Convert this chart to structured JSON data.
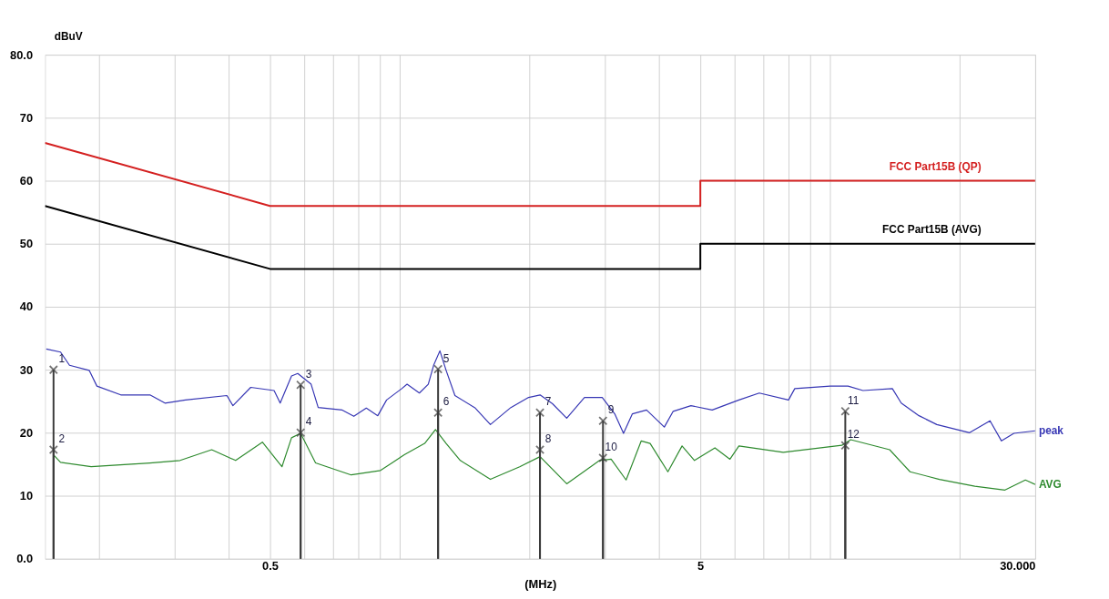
{
  "chart_data": {
    "type": "line",
    "xlabel": "(MHz)",
    "ylabel": "dBuV",
    "log": "x",
    "grid": true,
    "xlim": [
      0.15,
      30
    ],
    "ylim": [
      0,
      80
    ],
    "xticks": [
      {
        "value": 0.2,
        "label": null
      },
      {
        "value": 0.3,
        "label": null
      },
      {
        "value": 0.4,
        "label": null
      },
      {
        "value": 0.5,
        "label": "0.5"
      },
      {
        "value": 0.6,
        "label": null
      },
      {
        "value": 0.7,
        "label": null
      },
      {
        "value": 0.8,
        "label": null
      },
      {
        "value": 0.9,
        "label": null
      },
      {
        "value": 1,
        "label": null
      },
      {
        "value": 2,
        "label": null
      },
      {
        "value": 3,
        "label": null
      },
      {
        "value": 4,
        "label": null
      },
      {
        "value": 5,
        "label": "5"
      },
      {
        "value": 6,
        "label": null
      },
      {
        "value": 7,
        "label": null
      },
      {
        "value": 8,
        "label": null
      },
      {
        "value": 9,
        "label": null
      },
      {
        "value": 10,
        "label": null
      },
      {
        "value": 20,
        "label": null
      },
      {
        "value": 30,
        "label": "30.000"
      }
    ],
    "yticks": [
      {
        "value": 0,
        "label": "0.0"
      },
      10,
      20,
      30,
      40,
      50,
      60,
      70,
      {
        "value": 80,
        "label": "80.0"
      }
    ],
    "series": [
      {
        "name": "FCC Part15B  (QP)",
        "color": "#d42020",
        "x": [
          0.15,
          0.5,
          5,
          5,
          30
        ],
        "values": [
          66,
          56,
          56,
          60,
          60
        ]
      },
      {
        "name": "FCC Part15B (AVG)",
        "color": "#000000",
        "x": [
          0.15,
          0.5,
          5,
          5,
          30
        ],
        "values": [
          56,
          46,
          46,
          50,
          50
        ]
      },
      {
        "name": "peak",
        "color": "#3636b4",
        "x": [
          0.151,
          0.163,
          0.171,
          0.19,
          0.198,
          0.225,
          0.263,
          0.285,
          0.318,
          0.397,
          0.41,
          0.451,
          0.511,
          0.528,
          0.561,
          0.58,
          0.623,
          0.647,
          0.736,
          0.783,
          0.837,
          0.89,
          0.933,
          1.012,
          1.041,
          1.112,
          1.166,
          1.2,
          1.241,
          1.283,
          1.345,
          1.5,
          1.626,
          1.814,
          1.995,
          2.121,
          2.267,
          2.446,
          2.69,
          2.958,
          3.162,
          3.315,
          3.476,
          3.75,
          4.124,
          4.324,
          4.755,
          5.328,
          6.147,
          6.854,
          8.016,
          8.288,
          10.02,
          11.02,
          11.94,
          13.97,
          14.65,
          16.11,
          17.72,
          21.12,
          23.56,
          25.05,
          26.77,
          30
        ],
        "values": [
          33.3,
          32.8,
          30.7,
          29.9,
          27.4,
          26.0,
          26.0,
          24.7,
          25.2,
          25.9,
          24.3,
          27.2,
          26.7,
          24.7,
          29.0,
          29.4,
          27.7,
          24.0,
          23.6,
          22.6,
          23.9,
          22.7,
          25.2,
          27.0,
          27.7,
          26.3,
          27.7,
          30.7,
          33.0,
          29.9,
          25.9,
          23.9,
          21.3,
          24.0,
          25.6,
          26.0,
          24.6,
          22.3,
          25.6,
          25.6,
          23.0,
          19.9,
          23.0,
          23.6,
          20.9,
          23.4,
          24.3,
          23.6,
          25.2,
          26.3,
          25.2,
          27.0,
          27.4,
          27.4,
          26.7,
          27.0,
          24.7,
          22.7,
          21.3,
          20.0,
          21.9,
          18.7,
          19.9,
          20.3
        ]
      },
      {
        "name": "AVG",
        "color": "#2e8a2e",
        "x": [
          0.157,
          0.163,
          0.192,
          0.263,
          0.309,
          0.366,
          0.416,
          0.48,
          0.533,
          0.561,
          0.589,
          0.638,
          0.772,
          0.903,
          1.026,
          1.144,
          1.212,
          1.283,
          1.384,
          1.626,
          1.902,
          2.121,
          2.446,
          2.916,
          3.102,
          3.361,
          3.645,
          3.822,
          4.203,
          4.534,
          4.846,
          5.406,
          5.859,
          6.147,
          7.791,
          10.66,
          11.18,
          13.77,
          15.36,
          17.97,
          21.72,
          25.52,
          28.47,
          30
        ],
        "values": [
          16.5,
          15.3,
          14.6,
          15.2,
          15.6,
          17.3,
          15.6,
          18.5,
          14.6,
          19.2,
          19.9,
          15.2,
          13.3,
          14.0,
          16.5,
          18.3,
          20.5,
          18.3,
          15.6,
          12.6,
          14.6,
          16.2,
          11.9,
          15.6,
          15.8,
          12.5,
          18.7,
          18.3,
          13.8,
          17.9,
          15.6,
          17.6,
          15.8,
          17.9,
          16.9,
          18.0,
          18.9,
          17.3,
          13.8,
          12.6,
          11.5,
          10.9,
          12.5,
          11.8
        ]
      },
      {
        "type": "lollipop",
        "marker": "cross",
        "color": "#3a3a3a",
        "x": [
          0.157,
          0.157,
          0.589,
          0.589,
          1.229,
          1.229,
          2.12,
          2.12,
          2.97,
          2.97,
          10.86,
          10.86
        ],
        "values": [
          30.0,
          17.3,
          27.6,
          20.0,
          30.1,
          23.2,
          23.2,
          17.3,
          21.9,
          16.0,
          23.4,
          18.0
        ]
      }
    ],
    "annotations": [
      {
        "text": "1",
        "x": 0.157,
        "y": 30.0
      },
      {
        "text": "2",
        "x": 0.157,
        "y": 17.3
      },
      {
        "text": "3",
        "x": 0.589,
        "y": 27.6
      },
      {
        "text": "4",
        "x": 0.589,
        "y": 20.0
      },
      {
        "text": "5",
        "x": 1.229,
        "y": 30.1
      },
      {
        "text": "6",
        "x": 1.229,
        "y": 23.2
      },
      {
        "text": "7",
        "x": 2.12,
        "y": 23.2
      },
      {
        "text": "8",
        "x": 2.12,
        "y": 17.3
      },
      {
        "text": "9",
        "x": 2.97,
        "y": 21.9
      },
      {
        "text": "10",
        "x": 2.97,
        "y": 16.0
      },
      {
        "text": "11",
        "x": 10.86,
        "y": 23.4
      },
      {
        "text": "12",
        "x": 10.86,
        "y": 18.0
      }
    ]
  }
}
